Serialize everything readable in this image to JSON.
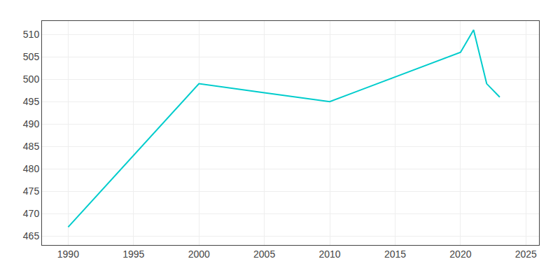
{
  "chart_data": {
    "type": "line",
    "x": [
      1990,
      2000,
      2005,
      2010,
      2020,
      2021,
      2022,
      2023
    ],
    "values": [
      467,
      499,
      497,
      495,
      506,
      511,
      499,
      496
    ],
    "color": "#00CCCC",
    "xlim": [
      1988,
      2026
    ],
    "ylim": [
      463,
      513
    ],
    "xticks": [
      1990,
      1995,
      2000,
      2005,
      2010,
      2015,
      2020,
      2025
    ],
    "yticks": [
      465,
      470,
      475,
      480,
      485,
      490,
      495,
      500,
      505,
      510
    ],
    "grid": true
  }
}
